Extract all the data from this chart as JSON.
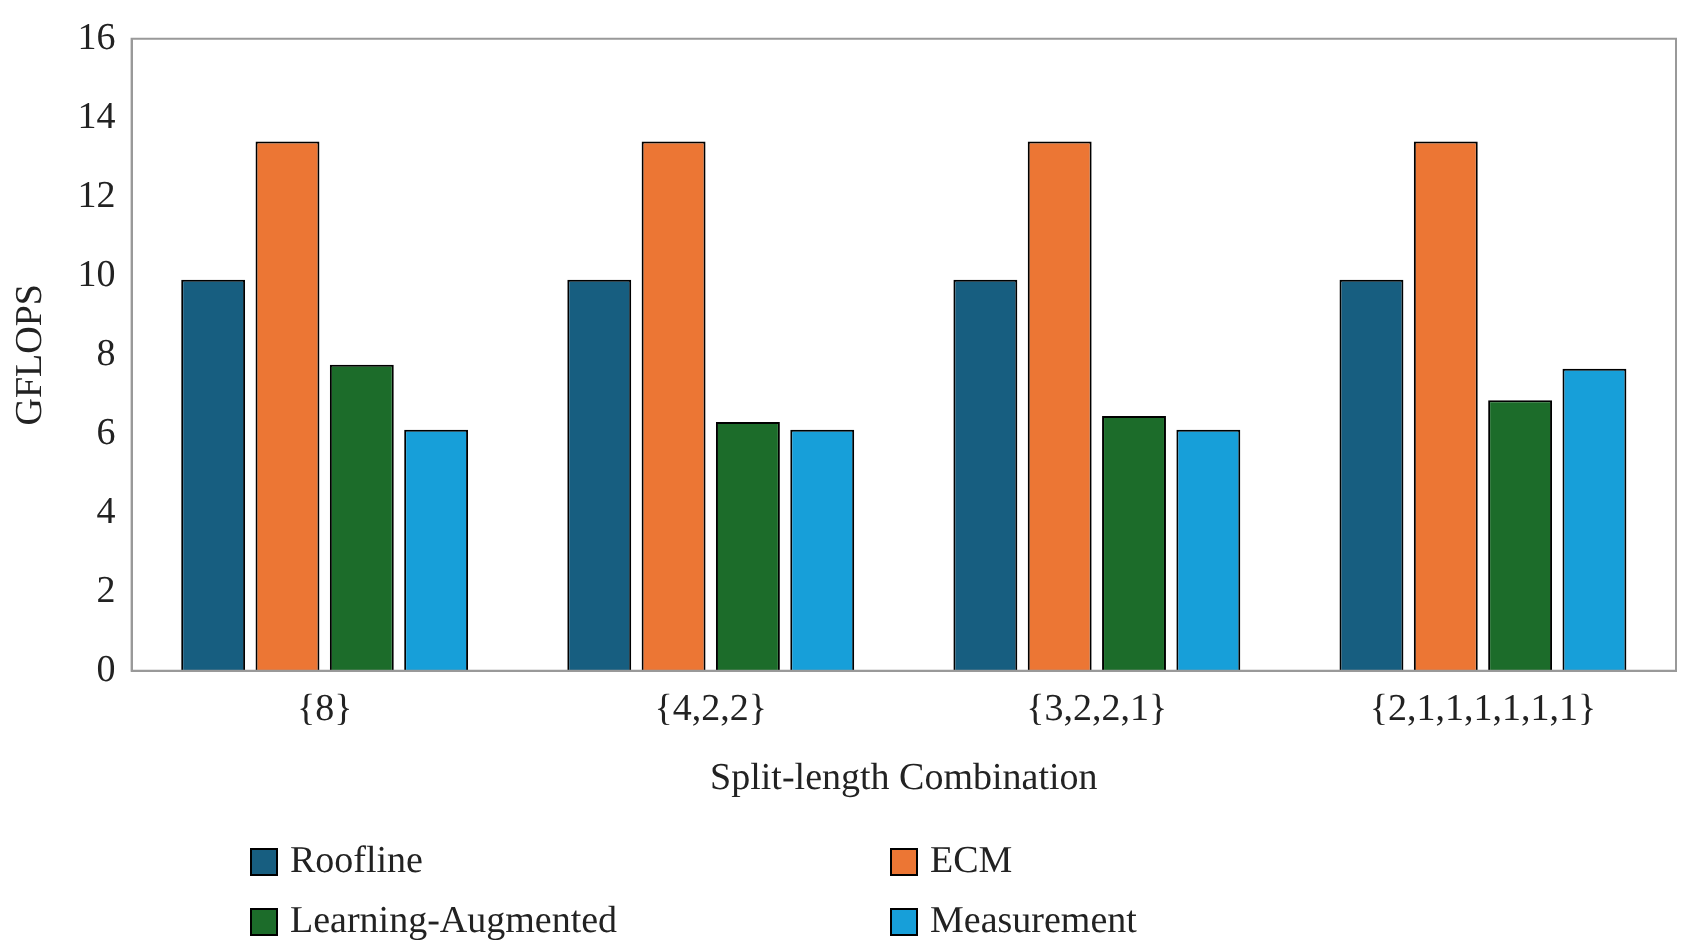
{
  "chart_data": {
    "type": "bar",
    "xlabel": "Split-length Combination",
    "ylabel": "GFLOPS",
    "categories": [
      "{8}",
      "{4,2,2}",
      "{3,2,2,1}",
      "{2,1,1,1,1,1,1}"
    ],
    "series": [
      {
        "name": "Roofline",
        "color": "#175e80",
        "values": [
          9.9,
          9.9,
          9.9,
          9.9
        ]
      },
      {
        "name": "ECM",
        "color": "#ec7634",
        "values": [
          13.4,
          13.4,
          13.4,
          13.4
        ]
      },
      {
        "name": "Learning-Augmented",
        "color": "#1c6c2a",
        "values": [
          7.75,
          6.3,
          6.45,
          6.85
        ]
      },
      {
        "name": "Measurement",
        "color": "#179fd9",
        "values": [
          6.1,
          6.1,
          6.1,
          7.65
        ]
      }
    ],
    "ylim": [
      0,
      16
    ],
    "yticks": [
      0,
      2,
      4,
      6,
      8,
      10,
      12,
      14,
      16
    ],
    "grid": false,
    "legend": "bottom"
  }
}
